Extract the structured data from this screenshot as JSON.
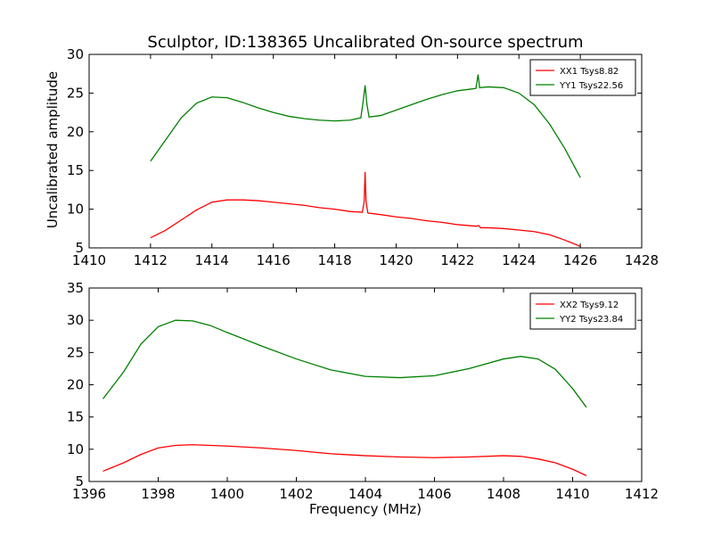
{
  "figure": {
    "title": "Sculptor, ID:138365 Uncalibrated On-source spectrum",
    "ylabel": "Uncalibrated amplitude",
    "xlabel": "Frequency (MHz)"
  },
  "chart_data": [
    {
      "type": "line",
      "xlim": [
        1410,
        1428
      ],
      "ylim": [
        5,
        30
      ],
      "xticks": [
        1410,
        1412,
        1414,
        1416,
        1418,
        1420,
        1422,
        1424,
        1426,
        1428
      ],
      "yticks": [
        5,
        10,
        15,
        20,
        25,
        30
      ],
      "legend": "top-right",
      "series": [
        {
          "name": "XX1 Tsys8.82",
          "color": "#ff0000",
          "points": [
            [
              1412.0,
              6.3
            ],
            [
              1412.5,
              7.3
            ],
            [
              1413.0,
              8.6
            ],
            [
              1413.5,
              9.9
            ],
            [
              1414.0,
              10.9
            ],
            [
              1414.5,
              11.2
            ],
            [
              1415.0,
              11.2
            ],
            [
              1415.5,
              11.1
            ],
            [
              1416.0,
              10.9
            ],
            [
              1416.5,
              10.7
            ],
            [
              1417.0,
              10.5
            ],
            [
              1417.5,
              10.2
            ],
            [
              1418.0,
              10.0
            ],
            [
              1418.5,
              9.7
            ],
            [
              1418.9,
              9.6
            ],
            [
              1418.96,
              11.0
            ],
            [
              1418.99,
              14.8
            ],
            [
              1419.02,
              11.0
            ],
            [
              1419.08,
              9.5
            ],
            [
              1419.5,
              9.3
            ],
            [
              1420.0,
              9.0
            ],
            [
              1420.5,
              8.8
            ],
            [
              1421.0,
              8.5
            ],
            [
              1421.5,
              8.3
            ],
            [
              1422.0,
              8.0
            ],
            [
              1422.6,
              7.8
            ],
            [
              1422.69,
              7.9
            ],
            [
              1422.75,
              7.6
            ],
            [
              1423.0,
              7.6
            ],
            [
              1423.5,
              7.5
            ],
            [
              1424.0,
              7.3
            ],
            [
              1424.5,
              7.1
            ],
            [
              1425.0,
              6.7
            ],
            [
              1425.5,
              6.0
            ],
            [
              1426.0,
              5.2
            ]
          ]
        },
        {
          "name": "YY1 Tsys22.56",
          "color": "#008000",
          "points": [
            [
              1412.0,
              16.2
            ],
            [
              1412.5,
              19.0
            ],
            [
              1413.0,
              21.8
            ],
            [
              1413.5,
              23.7
            ],
            [
              1414.0,
              24.5
            ],
            [
              1414.5,
              24.4
            ],
            [
              1415.0,
              23.8
            ],
            [
              1415.5,
              23.1
            ],
            [
              1416.0,
              22.5
            ],
            [
              1416.5,
              22.0
            ],
            [
              1417.0,
              21.7
            ],
            [
              1417.5,
              21.5
            ],
            [
              1418.0,
              21.4
            ],
            [
              1418.5,
              21.5
            ],
            [
              1418.85,
              21.8
            ],
            [
              1418.93,
              24.0
            ],
            [
              1418.99,
              26.0
            ],
            [
              1419.05,
              23.5
            ],
            [
              1419.12,
              21.9
            ],
            [
              1419.5,
              22.1
            ],
            [
              1420.0,
              22.8
            ],
            [
              1420.5,
              23.5
            ],
            [
              1421.0,
              24.2
            ],
            [
              1421.5,
              24.8
            ],
            [
              1422.0,
              25.3
            ],
            [
              1422.6,
              25.6
            ],
            [
              1422.67,
              27.4
            ],
            [
              1422.72,
              25.7
            ],
            [
              1423.0,
              25.8
            ],
            [
              1423.5,
              25.7
            ],
            [
              1424.0,
              25.0
            ],
            [
              1424.5,
              23.5
            ],
            [
              1425.0,
              21.0
            ],
            [
              1425.5,
              17.8
            ],
            [
              1426.0,
              14.1
            ]
          ]
        }
      ]
    },
    {
      "type": "line",
      "xlim": [
        1396,
        1412
      ],
      "ylim": [
        5,
        35
      ],
      "xticks": [
        1396,
        1398,
        1400,
        1402,
        1404,
        1406,
        1408,
        1410,
        1412
      ],
      "yticks": [
        5,
        10,
        15,
        20,
        25,
        30,
        35
      ],
      "legend": "top-right",
      "series": [
        {
          "name": "XX2 Tsys9.12",
          "color": "#ff0000",
          "points": [
            [
              1396.4,
              6.6
            ],
            [
              1397.0,
              7.9
            ],
            [
              1397.5,
              9.2
            ],
            [
              1398.0,
              10.2
            ],
            [
              1398.5,
              10.6
            ],
            [
              1399.0,
              10.7
            ],
            [
              1399.5,
              10.6
            ],
            [
              1400.0,
              10.5
            ],
            [
              1401.0,
              10.2
            ],
            [
              1402.0,
              9.8
            ],
            [
              1403.0,
              9.3
            ],
            [
              1404.0,
              9.0
            ],
            [
              1405.0,
              8.8
            ],
            [
              1406.0,
              8.7
            ],
            [
              1407.0,
              8.8
            ],
            [
              1408.0,
              9.0
            ],
            [
              1408.5,
              8.9
            ],
            [
              1409.0,
              8.5
            ],
            [
              1409.5,
              7.9
            ],
            [
              1410.0,
              6.9
            ],
            [
              1410.4,
              5.9
            ]
          ]
        },
        {
          "name": "YY2 Tsys23.84",
          "color": "#008000",
          "points": [
            [
              1396.4,
              17.8
            ],
            [
              1397.0,
              22.0
            ],
            [
              1397.5,
              26.3
            ],
            [
              1398.0,
              29.0
            ],
            [
              1398.5,
              30.0
            ],
            [
              1399.0,
              29.9
            ],
            [
              1399.5,
              29.2
            ],
            [
              1400.0,
              28.1
            ],
            [
              1401.0,
              26.0
            ],
            [
              1402.0,
              24.0
            ],
            [
              1403.0,
              22.3
            ],
            [
              1404.0,
              21.3
            ],
            [
              1405.0,
              21.1
            ],
            [
              1406.0,
              21.4
            ],
            [
              1407.0,
              22.5
            ],
            [
              1408.0,
              24.0
            ],
            [
              1408.5,
              24.4
            ],
            [
              1409.0,
              24.0
            ],
            [
              1409.5,
              22.4
            ],
            [
              1410.0,
              19.4
            ],
            [
              1410.4,
              16.5
            ]
          ]
        }
      ]
    }
  ]
}
